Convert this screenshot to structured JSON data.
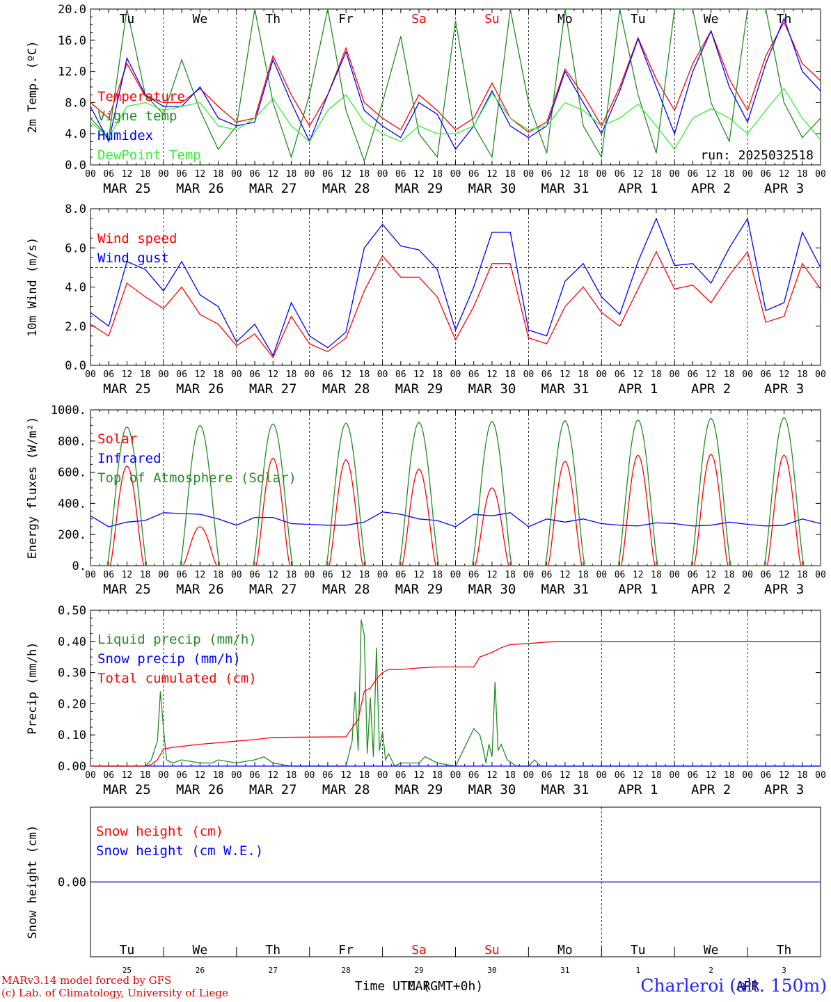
{
  "run_label": "run: 2025032518",
  "station": "Charleroi (alt. 150m)",
  "credits": [
    "MARv3.14 model forced by GFS",
    "(c) Lab. of Climatology, University of Liege"
  ],
  "time_axis_label": "Time UTC (GMT+0h)",
  "bottom_month": "MAR",
  "bottom_month_apr": "APR",
  "weekdays": [
    "Tu",
    "We",
    "Th",
    "Fr",
    "Sa",
    "Su",
    "Mo",
    "Tu",
    "We",
    "Th"
  ],
  "weekday_colors": [
    "#000000",
    "#000000",
    "#000000",
    "#000000",
    "#ff0000",
    "#ff0000",
    "#000000",
    "#000000",
    "#000000",
    "#000000"
  ],
  "dates": [
    "MAR 25",
    "MAR 26",
    "MAR 27",
    "MAR 28",
    "MAR 29",
    "MAR 30",
    "MAR 31",
    "APR  1",
    "APR  2",
    "APR  3"
  ],
  "day_numbers": [
    "25",
    "26",
    "27",
    "28",
    "29",
    "30",
    "31",
    "1",
    "2",
    "3"
  ],
  "hour_ticks": [
    "00",
    "06",
    "12",
    "18"
  ],
  "colors": {
    "red": "#ff0000",
    "dark_green": "#228b22",
    "blue": "#0000ff",
    "light_green": "#33ee33",
    "axis": "#000000"
  },
  "chart_data": [
    {
      "type": "line",
      "ylabel": "2m Temp. (ºC)",
      "ylim": [
        0,
        20
      ],
      "yticks": [
        "0.0",
        "4.0",
        "8.0",
        "12.0",
        "16.0",
        "20.0"
      ],
      "x_unit": "hours since MAR 25 00 UTC",
      "series": [
        {
          "name": "Temperature",
          "color": "#ff0000",
          "x": [
            0,
            6,
            12,
            18,
            24,
            30,
            36,
            42,
            48,
            54,
            60,
            66,
            72,
            78,
            84,
            90,
            96,
            102,
            108,
            114,
            120,
            126,
            132,
            138,
            144,
            150,
            156,
            162,
            168,
            174,
            180,
            186,
            192,
            198,
            204,
            210,
            216,
            222,
            228,
            234,
            240
          ],
          "values": [
            8.0,
            6.0,
            13.0,
            8.8,
            8.0,
            8.0,
            9.8,
            7.5,
            5.5,
            6.0,
            14.0,
            9.0,
            5.0,
            9.0,
            15.0,
            8.0,
            6.0,
            4.5,
            9.0,
            7.0,
            4.5,
            6.0,
            10.5,
            6.0,
            4.2,
            5.5,
            12.3,
            9.0,
            5.0,
            10.0,
            16.3,
            11.0,
            7.0,
            13.0,
            17.2,
            11.0,
            7.0,
            14.0,
            18.3,
            13.0,
            10.8
          ]
        },
        {
          "name": "Vigne temp",
          "color": "#228b22",
          "x": [
            0,
            6,
            12,
            18,
            24,
            30,
            36,
            42,
            48,
            54,
            60,
            66,
            72,
            78,
            84,
            90,
            96,
            102,
            108,
            114,
            120,
            126,
            132,
            138,
            144,
            150,
            156,
            162,
            168,
            174,
            180,
            186,
            192,
            198,
            204,
            210,
            216,
            222,
            228,
            234,
            240
          ],
          "values": [
            6.0,
            3.5,
            20.0,
            9.0,
            6.5,
            13.5,
            7.0,
            2.0,
            5.0,
            20.0,
            8.0,
            1.0,
            9.0,
            20.0,
            7.0,
            0.5,
            8.0,
            16.5,
            4.0,
            1.0,
            18.5,
            5.0,
            1.0,
            20.0,
            8.0,
            1.5,
            20.0,
            5.0,
            1.0,
            20.0,
            9.0,
            1.5,
            20.0,
            20.0,
            8.0,
            3.0,
            20.0,
            20.0,
            8.0,
            3.5,
            6.0
          ]
        },
        {
          "name": "Humidex",
          "color": "#0000ff",
          "x": [
            0,
            6,
            12,
            18,
            24,
            30,
            36,
            42,
            48,
            54,
            60,
            66,
            72,
            78,
            84,
            90,
            96,
            102,
            108,
            114,
            120,
            126,
            132,
            138,
            144,
            150,
            156,
            162,
            168,
            174,
            180,
            186,
            192,
            198,
            204,
            210,
            216,
            222,
            228,
            234,
            240
          ],
          "values": [
            7.5,
            3.0,
            13.7,
            9.0,
            7.5,
            7.5,
            10.0,
            6.0,
            5.0,
            5.5,
            13.5,
            8.0,
            3.0,
            9.0,
            14.5,
            7.0,
            5.0,
            3.5,
            8.0,
            6.5,
            2.0,
            5.0,
            9.5,
            5.0,
            3.5,
            5.0,
            12.0,
            8.0,
            4.0,
            9.5,
            16.2,
            10.0,
            4.0,
            12.0,
            17.2,
            10.0,
            5.5,
            13.0,
            18.8,
            12.0,
            9.5
          ]
        },
        {
          "name": "DewPoint Temp",
          "color": "#33ee33",
          "x": [
            0,
            6,
            12,
            18,
            24,
            30,
            36,
            42,
            48,
            54,
            60,
            66,
            72,
            78,
            84,
            90,
            96,
            102,
            108,
            114,
            120,
            126,
            132,
            138,
            144,
            150,
            156,
            162,
            168,
            174,
            180,
            186,
            192,
            198,
            204,
            210,
            216,
            222,
            228,
            234,
            240
          ],
          "values": [
            5.5,
            3.5,
            7.5,
            8.0,
            7.0,
            7.5,
            8.0,
            5.0,
            4.5,
            6.0,
            8.5,
            5.0,
            3.0,
            7.0,
            9.0,
            5.5,
            4.0,
            3.0,
            5.0,
            4.0,
            4.0,
            5.0,
            9.2,
            6.0,
            4.5,
            5.0,
            8.0,
            7.0,
            5.0,
            6.0,
            7.8,
            5.0,
            2.0,
            6.0,
            7.2,
            6.0,
            4.0,
            7.0,
            9.8,
            6.0,
            3.2
          ]
        }
      ]
    },
    {
      "type": "line",
      "ylabel": "10m Wind (m/s)",
      "ylim": [
        0,
        8
      ],
      "yticks": [
        "0.0",
        "2.0",
        "4.0",
        "6.0",
        "8.0"
      ],
      "reference_line": 5,
      "x_unit": "hours since MAR 25 00 UTC",
      "series": [
        {
          "name": "Wind speed",
          "color": "#ff0000",
          "x": [
            0,
            6,
            12,
            18,
            24,
            30,
            36,
            42,
            48,
            54,
            60,
            66,
            72,
            78,
            84,
            90,
            96,
            102,
            108,
            114,
            120,
            126,
            132,
            138,
            144,
            150,
            156,
            162,
            168,
            174,
            180,
            186,
            192,
            198,
            204,
            210,
            216,
            222,
            228,
            234,
            240
          ],
          "values": [
            2.1,
            1.5,
            4.2,
            3.5,
            2.9,
            4.0,
            2.6,
            2.1,
            1.0,
            1.6,
            0.4,
            2.5,
            1.1,
            0.7,
            1.4,
            3.8,
            5.6,
            4.5,
            4.5,
            3.5,
            1.3,
            3.0,
            5.2,
            5.2,
            1.4,
            1.1,
            3.0,
            4.0,
            2.7,
            2.0,
            3.9,
            5.8,
            3.9,
            4.1,
            3.2,
            4.6,
            5.8,
            2.2,
            2.5,
            5.2,
            3.9
          ]
        },
        {
          "name": "Wind gust",
          "color": "#0000ff",
          "x": [
            0,
            6,
            12,
            18,
            24,
            30,
            36,
            42,
            48,
            54,
            60,
            66,
            72,
            78,
            84,
            90,
            96,
            102,
            108,
            114,
            120,
            126,
            132,
            138,
            144,
            150,
            156,
            162,
            168,
            174,
            180,
            186,
            192,
            198,
            204,
            210,
            216,
            222,
            228,
            234,
            240
          ],
          "values": [
            2.7,
            2.0,
            5.3,
            4.9,
            3.8,
            5.3,
            3.6,
            3.0,
            1.2,
            2.1,
            0.5,
            3.2,
            1.5,
            0.9,
            1.7,
            6.0,
            7.2,
            6.1,
            5.9,
            4.9,
            1.8,
            4.0,
            6.8,
            6.8,
            1.8,
            1.5,
            4.3,
            5.2,
            3.5,
            2.6,
            5.3,
            7.5,
            5.1,
            5.2,
            4.2,
            6.0,
            7.5,
            2.8,
            3.2,
            6.8,
            5.0
          ]
        }
      ]
    },
    {
      "type": "line",
      "ylabel": "Energy fluxes (W/m²)",
      "ylim": [
        0,
        1000
      ],
      "yticks": [
        "0.",
        "200.",
        "400.",
        "600.",
        "800.",
        "1000."
      ],
      "x_unit": "hours since MAR 25 00 UTC",
      "series": [
        {
          "name": "Solar",
          "color": "#ff0000",
          "peaks": [
            640,
            250,
            690,
            680,
            620,
            500,
            670,
            710,
            715,
            710
          ]
        },
        {
          "name": "Infrared",
          "color": "#0000ff",
          "x": [
            0,
            6,
            12,
            18,
            24,
            30,
            36,
            42,
            48,
            54,
            60,
            66,
            72,
            78,
            84,
            90,
            96,
            102,
            108,
            114,
            120,
            126,
            132,
            138,
            144,
            150,
            156,
            162,
            168,
            174,
            180,
            186,
            192,
            198,
            204,
            210,
            216,
            222,
            228,
            234,
            240
          ],
          "values": [
            320,
            250,
            280,
            290,
            340,
            335,
            330,
            300,
            260,
            310,
            310,
            270,
            265,
            260,
            260,
            280,
            345,
            330,
            300,
            290,
            250,
            330,
            320,
            340,
            250,
            300,
            280,
            300,
            270,
            260,
            255,
            275,
            270,
            255,
            260,
            280,
            265,
            255,
            260,
            300,
            270
          ]
        },
        {
          "name": "Top of Atmosphere (Solar)",
          "color": "#228b22",
          "peaks": [
            890,
            900,
            910,
            915,
            920,
            925,
            930,
            935,
            945,
            950
          ]
        }
      ]
    },
    {
      "type": "line",
      "ylabel": "Precip (mm/h)",
      "ylim": [
        0,
        0.5
      ],
      "yticks": [
        "0.00",
        "0.10",
        "0.20",
        "0.30",
        "0.40",
        "0.50"
      ],
      "x_unit": "hours since MAR 25 00 UTC",
      "series": [
        {
          "name": "Liquid precip (mm/h)",
          "color": "#228b22",
          "x": [
            0,
            18,
            20,
            22,
            23,
            24,
            25,
            27,
            30,
            36,
            40,
            42,
            48,
            54,
            57,
            60,
            66,
            72,
            84,
            86,
            87,
            88,
            89,
            90,
            91,
            92,
            93,
            94,
            95,
            96,
            97,
            98,
            99,
            100,
            102,
            108,
            110,
            114,
            120,
            126,
            128,
            129,
            130,
            131,
            132,
            133,
            134,
            135,
            137,
            140,
            144,
            146,
            148,
            152,
            160,
            240
          ],
          "values": [
            0,
            0,
            0.02,
            0.08,
            0.24,
            0.12,
            0.02,
            0.01,
            0.02,
            0.01,
            0.01,
            0.02,
            0.01,
            0.02,
            0.03,
            0.01,
            0.0,
            0.0,
            0.0,
            0.08,
            0.24,
            0.05,
            0.47,
            0.42,
            0.04,
            0.22,
            0.03,
            0.38,
            0.05,
            0.11,
            0.02,
            0.04,
            0.02,
            0.0,
            0.01,
            0.01,
            0.03,
            0.01,
            0.0,
            0.12,
            0.1,
            0.06,
            0.01,
            0.07,
            0.03,
            0.27,
            0.05,
            0.07,
            0.02,
            0.0,
            0.0,
            0.02,
            0.0,
            0.0,
            0.0,
            0.0
          ]
        },
        {
          "name": "Snow precip (mm/h)",
          "color": "#0000ff",
          "x": [
            0,
            240
          ],
          "values": [
            0,
            0
          ]
        },
        {
          "name": "Total cumulated (cm)",
          "color": "#ff0000",
          "x": [
            0,
            18,
            20,
            22,
            24,
            27,
            36,
            48,
            54,
            60,
            72,
            84,
            88,
            90,
            92,
            94,
            96,
            98,
            102,
            108,
            114,
            126,
            128,
            132,
            135,
            138,
            144,
            150,
            156,
            168,
            240
          ],
          "values": [
            0,
            0,
            0.005,
            0.02,
            0.055,
            0.06,
            0.07,
            0.08,
            0.085,
            0.092,
            0.093,
            0.094,
            0.15,
            0.24,
            0.25,
            0.28,
            0.3,
            0.31,
            0.31,
            0.315,
            0.318,
            0.318,
            0.35,
            0.365,
            0.38,
            0.39,
            0.393,
            0.398,
            0.4,
            0.4,
            0.4
          ]
        }
      ]
    },
    {
      "type": "line",
      "ylabel": "Snow height (cm)",
      "ylim": [
        -1,
        1
      ],
      "yticks": [
        "0.00"
      ],
      "x_unit": "hours since MAR 25 00 UTC",
      "series": [
        {
          "name": "Snow height (cm)",
          "color": "#ff0000",
          "x": [
            0,
            240
          ],
          "values": [
            0,
            0
          ]
        },
        {
          "name": "Snow height (cm W.E.)",
          "color": "#0000ff",
          "x": [
            0,
            240
          ],
          "values": [
            0,
            0
          ]
        }
      ]
    }
  ]
}
